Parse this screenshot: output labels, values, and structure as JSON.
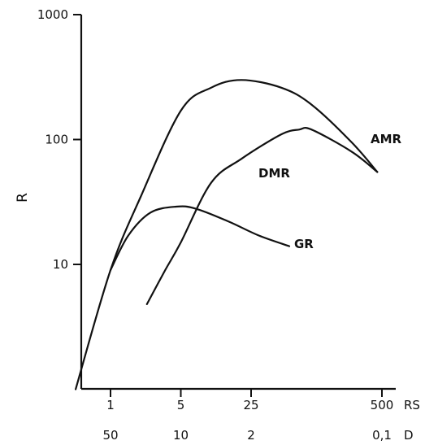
{
  "chart_data": {
    "type": "line",
    "title": "",
    "ylabel": "R",
    "yscale": "log",
    "ylim": [
      1,
      1000
    ],
    "y_ticks": [
      "1000",
      "100",
      "10"
    ],
    "xscale": "log",
    "x_axis_rows": [
      {
        "name": "RS",
        "ticks": [
          {
            "value": 1,
            "label": "1"
          },
          {
            "value": 5,
            "label": "5"
          },
          {
            "value": 25,
            "label": "25"
          },
          {
            "value": 500,
            "label": "500"
          }
        ]
      },
      {
        "name": "D",
        "ticks": [
          {
            "value": 1,
            "label": "50"
          },
          {
            "value": 5,
            "label": "10"
          },
          {
            "value": 25,
            "label": "2"
          },
          {
            "value": 500,
            "label": "0,1"
          }
        ]
      }
    ],
    "series": [
      {
        "name": "AMR",
        "x": [
          0.45,
          1.0,
          2.0,
          5.0,
          10,
          20,
          50,
          100,
          250,
          450
        ],
        "y": [
          1.0,
          9,
          35,
          170,
          260,
          300,
          260,
          190,
          95,
          55
        ]
      },
      {
        "name": "DMR",
        "x": [
          2.3,
          3.5,
          5,
          10,
          20,
          50,
          75,
          100,
          250,
          450
        ],
        "y": [
          4.8,
          9,
          15,
          45,
          70,
          110,
          120,
          120,
          80,
          55
        ]
      },
      {
        "name": "GR",
        "x": [
          1.0,
          1.5,
          2.5,
          4.5,
          7,
          15,
          30,
          60
        ],
        "y": [
          9,
          17,
          26,
          29,
          28,
          22,
          17,
          14
        ]
      }
    ]
  }
}
